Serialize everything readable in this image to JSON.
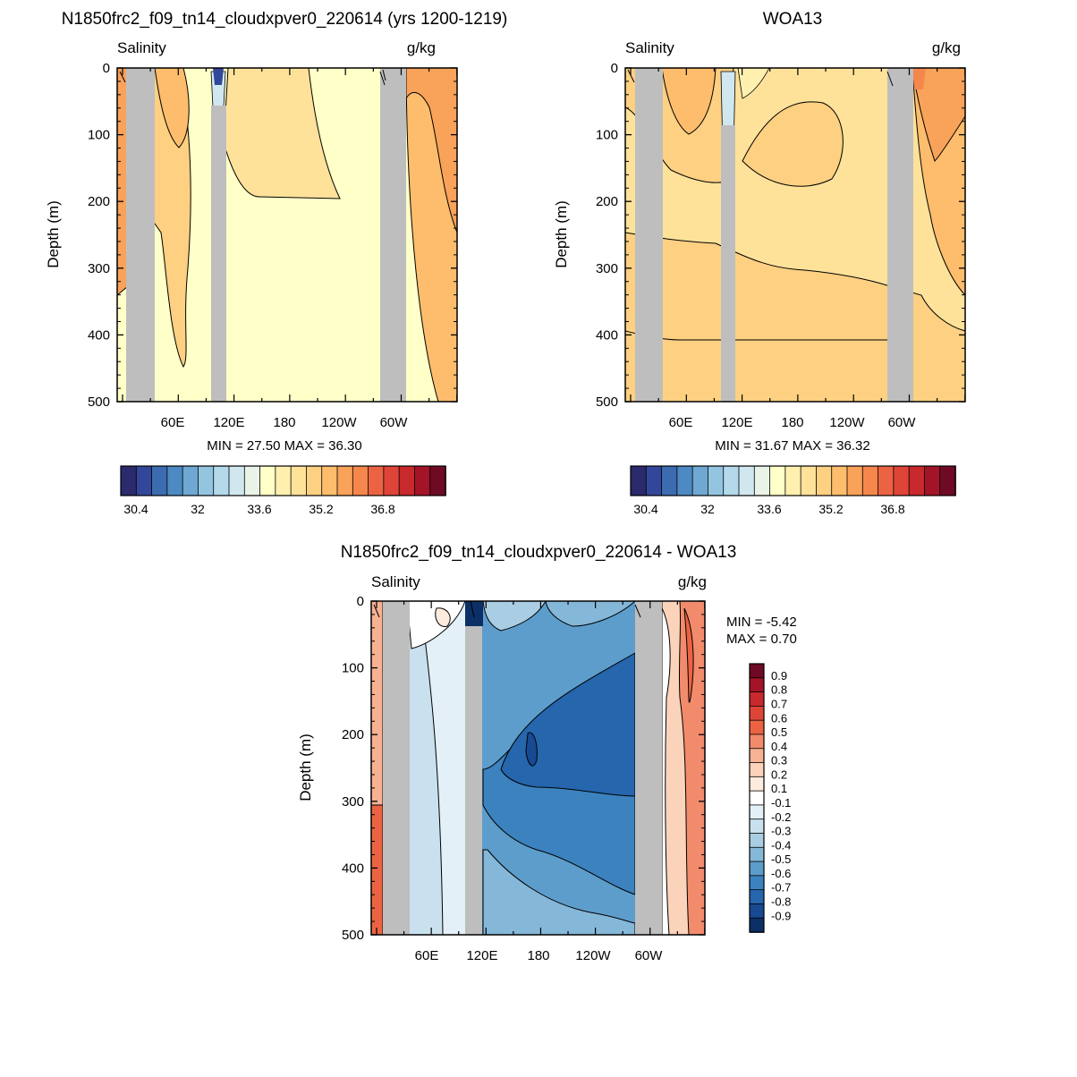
{
  "chart_data": [
    {
      "type": "heatmap",
      "title": "N1850frc2_f09_tn14_cloudxpver0_220614 (yrs 1200-1219)",
      "left_label": "Salinity",
      "right_label": "g/kg",
      "ylabel": "Depth (m)",
      "ylim": [
        500,
        0
      ],
      "y_ticks": [
        "0",
        "100",
        "200",
        "300",
        "400",
        "500"
      ],
      "x_ticks": [
        "60E",
        "120E",
        "180",
        "120W",
        "60W"
      ],
      "stats": "MIN =  27.50  MAX =  36.30",
      "colorbar_labels": [
        "30.4",
        "32",
        "33.6",
        "35.2",
        "36.8"
      ],
      "colorbar_colors": [
        "#2a2a6c",
        "#33479a",
        "#3d6bb0",
        "#4d8ac3",
        "#6ea8d3",
        "#93c5e0",
        "#b3d9ea",
        "#d1e7f0",
        "#e9f3e8",
        "#ffffc8",
        "#fff0b0",
        "#fee29a",
        "#fdd082",
        "#fdbd6c",
        "#f9a25a",
        "#f5874c",
        "#ec6343",
        "#de4538",
        "#c8292c",
        "#a31428",
        "#6e0a24"
      ]
    },
    {
      "type": "heatmap",
      "title": "WOA13",
      "left_label": "Salinity",
      "right_label": "g/kg",
      "ylabel": "Depth (m)",
      "ylim": [
        500,
        0
      ],
      "y_ticks": [
        "0",
        "100",
        "200",
        "300",
        "400",
        "500"
      ],
      "x_ticks": [
        "60E",
        "120E",
        "180",
        "120W",
        "60W"
      ],
      "stats": "MIN =  31.67  MAX =  36.32",
      "colorbar_labels": [
        "30.4",
        "32",
        "33.6",
        "35.2",
        "36.8"
      ],
      "colorbar_colors": [
        "#2a2a6c",
        "#33479a",
        "#3d6bb0",
        "#4d8ac3",
        "#6ea8d3",
        "#93c5e0",
        "#b3d9ea",
        "#d1e7f0",
        "#e9f3e8",
        "#ffffc8",
        "#fff0b0",
        "#fee29a",
        "#fdd082",
        "#fdbd6c",
        "#f9a25a",
        "#f5874c",
        "#ec6343",
        "#de4538",
        "#c8292c",
        "#a31428",
        "#6e0a24"
      ]
    },
    {
      "type": "heatmap",
      "title": "N1850frc2_f09_tn14_cloudxpver0_220614 - WOA13",
      "left_label": "Salinity",
      "right_label": "g/kg",
      "ylabel": "Depth (m)",
      "ylim": [
        500,
        0
      ],
      "y_ticks": [
        "0",
        "100",
        "200",
        "300",
        "400",
        "500"
      ],
      "x_ticks": [
        "60E",
        "120E",
        "180",
        "120W",
        "60W"
      ],
      "stats": [
        "MIN =  -5.42",
        "MAX =   0.70"
      ],
      "colorbar_labels": [
        "0.9",
        "0.8",
        "0.7",
        "0.6",
        "0.5",
        "0.4",
        "0.3",
        "0.2",
        "0.1",
        "-0.1",
        "-0.2",
        "-0.3",
        "-0.4",
        "-0.5",
        "-0.6",
        "-0.7",
        "-0.8",
        "-0.9"
      ],
      "colorbar_colors": [
        "#6e0a24",
        "#a31428",
        "#c8292c",
        "#de4538",
        "#ec6343",
        "#f28b6c",
        "#f7b193",
        "#fbd3bb",
        "#fdebdd",
        "#ffffff",
        "#e3f0f7",
        "#c9e1ef",
        "#a9cde3",
        "#85b7d8",
        "#5d9dcb",
        "#3c82bf",
        "#2566ad",
        "#174a91",
        "#0b2f66"
      ]
    }
  ]
}
